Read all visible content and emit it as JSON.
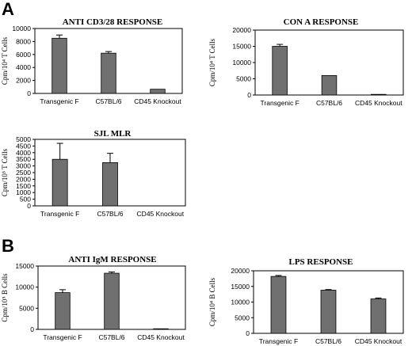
{
  "panels": {
    "a": "A",
    "b": "B"
  },
  "chart_data": [
    {
      "type": "bar",
      "title": "ANTI CD3/28 RESPONSE",
      "ylabel": "Cpm/10⁴ T Cells",
      "categories": [
        "Transgenic F",
        "C57BL/6",
        "CD45 Knockout"
      ],
      "values": [
        8500,
        6200,
        650
      ],
      "errors": [
        500,
        250,
        0
      ],
      "ylim": [
        0,
        10000
      ],
      "yticks": [
        "0",
        "2000",
        "4000",
        "6000",
        "8000",
        "10000"
      ],
      "bar_color": "#707070"
    },
    {
      "type": "bar",
      "title": "CON A RESPONSE",
      "ylabel": "Cpm/10⁴ T Cells",
      "categories": [
        "Transgenic F",
        "C57BL/6",
        "CD45 Knockout"
      ],
      "values": [
        15000,
        6000,
        200
      ],
      "errors": [
        600,
        0,
        0
      ],
      "ylim": [
        0,
        20000
      ],
      "yticks": [
        "0",
        "5000",
        "10000",
        "15000",
        "20000"
      ],
      "bar_color": "#707070"
    },
    {
      "type": "bar",
      "title": "SJL MLR",
      "ylabel": "Cpm/10⁵ T Cells",
      "categories": [
        "Transgenic F",
        "C57BL/6",
        "CD45 Knockout"
      ],
      "values": [
        3500,
        3250,
        0
      ],
      "errors": [
        1200,
        700,
        0
      ],
      "ylim": [
        0,
        5000
      ],
      "yticks": [
        "0",
        "500",
        "1000",
        "1500",
        "2000",
        "2500",
        "3000",
        "3500",
        "4000",
        "4500",
        "5000"
      ],
      "bar_color": "#707070"
    },
    {
      "type": "bar",
      "title": "ANTI IgM RESPONSE",
      "ylabel": "Cpm/10⁵ B Cells",
      "categories": [
        "Transgenic F",
        "C57BL/6",
        "CD45 Knockout"
      ],
      "values": [
        8700,
        13300,
        150
      ],
      "errors": [
        700,
        300,
        0
      ],
      "ylim": [
        0,
        15000
      ],
      "yticks": [
        "0",
        "5000",
        "10000",
        "15000"
      ],
      "bar_color": "#707070"
    },
    {
      "type": "bar",
      "title": "LPS RESPONSE",
      "ylabel": "Cpm/10⁴ B Cells",
      "categories": [
        "Transgenic F",
        "C57BL/6",
        "CD45 Knockout"
      ],
      "values": [
        18200,
        13800,
        11000
      ],
      "errors": [
        300,
        200,
        300
      ],
      "ylim": [
        0,
        20000
      ],
      "yticks": [
        "0",
        "5000",
        "10000",
        "15000",
        "20000"
      ],
      "bar_color": "#707070"
    }
  ]
}
